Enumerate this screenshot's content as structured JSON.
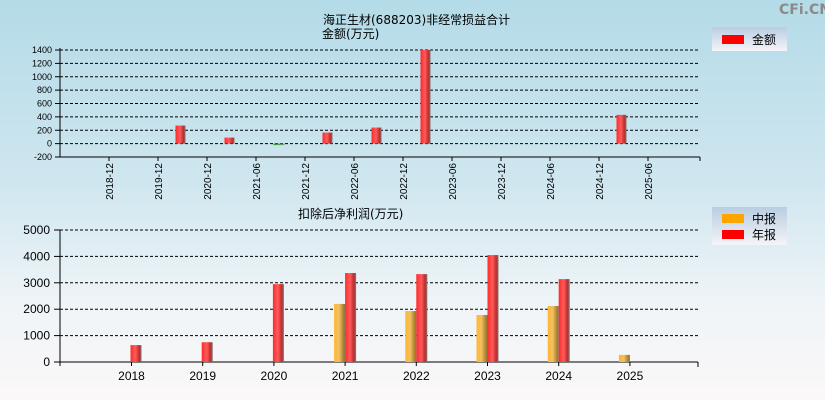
{
  "watermark": "CFi.CN",
  "top_chart": {
    "title_line1": "海正生材(688203)非经常损益合计",
    "title_line2": "金额(万元)",
    "legend": [
      {
        "label": "金额",
        "color": "#ff0000"
      }
    ]
  },
  "bottom_chart": {
    "title": "扣除后净利润(万元)",
    "legend": [
      {
        "label": "中报",
        "color": "#ffa500"
      },
      {
        "label": "年报",
        "color": "#ff0000"
      }
    ]
  },
  "chart_data": [
    {
      "type": "bar",
      "title": "海正生材(688203)非经常损益合计 金额(万元)",
      "xlabel": "",
      "ylabel": "金额(万元)",
      "ylim": [
        -200,
        1400
      ],
      "yticks": [
        -200,
        0,
        200,
        400,
        600,
        800,
        1000,
        1200,
        1400
      ],
      "grid": true,
      "legend_position": "top-right",
      "categories": [
        "2018-12",
        "2019-12",
        "2020-12",
        "2021-06",
        "2021-12",
        "2022-06",
        "2022-12",
        "2023-06",
        "2023-12",
        "2024-06",
        "2024-12",
        "2025-06"
      ],
      "series": [
        {
          "name": "金额",
          "color": "#ff0000",
          "negative_color": "#22aa22",
          "values": [
            null,
            270,
            90,
            -15,
            165,
            240,
            1400,
            null,
            null,
            null,
            430,
            null
          ]
        }
      ]
    },
    {
      "type": "bar",
      "title": "扣除后净利润(万元)",
      "xlabel": "",
      "ylabel": "扣除后净利润(万元)",
      "ylim": [
        0,
        5000
      ],
      "yticks": [
        0,
        1000,
        2000,
        3000,
        4000,
        5000
      ],
      "grid": true,
      "legend_position": "top-right",
      "categories": [
        "2018",
        "2019",
        "2020",
        "2021",
        "2022",
        "2023",
        "2024",
        "2025"
      ],
      "series": [
        {
          "name": "中报",
          "color": "#ffa500",
          "values": [
            null,
            null,
            null,
            2200,
            1930,
            1780,
            2120,
            270
          ]
        },
        {
          "name": "年报",
          "color": "#ff0000",
          "values": [
            640,
            750,
            2950,
            3370,
            3330,
            4050,
            3140,
            null
          ]
        }
      ]
    }
  ]
}
